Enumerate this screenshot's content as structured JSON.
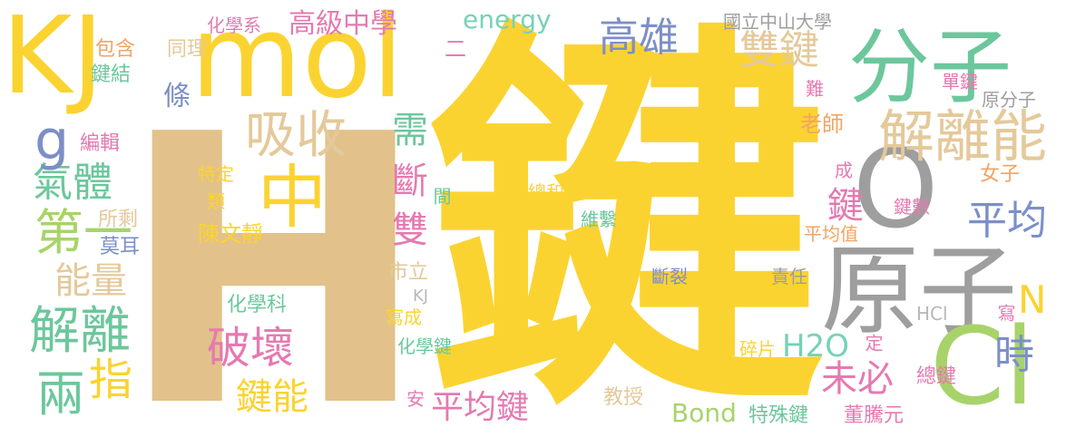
{
  "colors": {
    "yellow": "#fbd331",
    "tan": "#e2c28a",
    "green": "#6cc79c",
    "gray": "#9e9e9e",
    "blue": "#7c8fc7",
    "pink": "#e57ab0",
    "orange": "#f1a464",
    "lime": "#a8d36b",
    "mint": "#77d1b7",
    "sand": "#e4c99a",
    "light_gray": "#b8b8b8"
  },
  "words": {
    "H": "H",
    "jian_big": "鍵",
    "kj_big": "KJ",
    "mol": "mol",
    "fenzi": "分子",
    "yuanzi": "原子",
    "o": "O",
    "cl": "Cl",
    "zhong": "中",
    "xishou": "吸收",
    "jielineng": "解離能",
    "shuangjian": "雙鍵",
    "gaoxiong": "高雄",
    "pingjun": "平均",
    "jieli": "解離",
    "pohuai": "破壞",
    "qiti": "氣體",
    "di": "第一",
    "g": "g",
    "xu": "需",
    "duan": "斷",
    "shuang": "雙",
    "jian_v": "鍵",
    "liang": "兩",
    "zhi": "指",
    "nengliang": "能量",
    "jianneng": "鍵能",
    "pingjunjian": "平均鍵",
    "weibi": "未必",
    "shi": "時",
    "h2o": "H2O",
    "n": "N",
    "gaojizhongxue": "高級中學",
    "energy": "energy",
    "huaxuexi": "化學系",
    "guoli": "國立中山大學",
    "baohan": "包含",
    "jianjie": "鍵結",
    "tongli": "同理",
    "er": "二",
    "tiao": "條",
    "bianji": "編輯",
    "teding": "特定",
    "lei": "類",
    "suosheng": "所剩",
    "moer": "莫耳",
    "chenwenjing": "陳文靜",
    "huaxueke": "化學科",
    "shili": "市立",
    "kj_small": "KJ",
    "xiecheng": "寫成",
    "huaxuejian": "化學鍵",
    "an": "安",
    "jiaoshou": "教授",
    "bond": "Bond",
    "teshujian": "特殊鍵",
    "dongtengyuan": "董騰元",
    "zongjian": "總鍵",
    "suipian": "碎片",
    "ding": "定",
    "hcl": "HCl",
    "xie": "寫",
    "zeren": "責任",
    "duanlie": "斷裂",
    "weixi": "維繫",
    "zonghe": "總和",
    "jian_small": "間",
    "cheng": "成",
    "jianshu": "鍵數",
    "pingjunzhi": "平均值",
    "nvzi": "女子",
    "laoshi": "老師",
    "nan": "難",
    "danjian": "單鍵",
    "yuanfenzi": "原分子"
  }
}
